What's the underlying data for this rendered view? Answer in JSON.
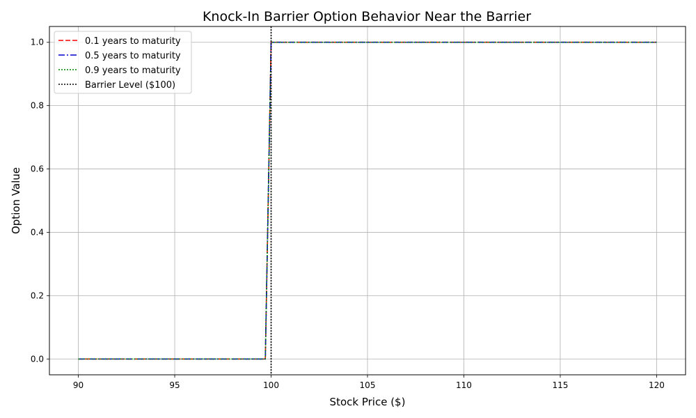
{
  "chart_data": {
    "type": "line",
    "title": "Knock-In Barrier Option Behavior Near the Barrier",
    "xlabel": "Stock Price ($)",
    "ylabel": "Option Value",
    "xlim": [
      88.5,
      121.5
    ],
    "ylim": [
      -0.05,
      1.05
    ],
    "xticks": [
      90,
      95,
      100,
      105,
      110,
      115,
      120
    ],
    "xtick_labels": [
      "90",
      "95",
      "100",
      "105",
      "110",
      "115",
      "120"
    ],
    "yticks": [
      0.0,
      0.2,
      0.4,
      0.6,
      0.8,
      1.0
    ],
    "ytick_labels": [
      "0.0",
      "0.2",
      "0.4",
      "0.6",
      "0.8",
      "1.0"
    ],
    "grid": true,
    "legend_position": "top-left",
    "series": [
      {
        "name": "0.1 years to maturity",
        "color": "#ff0000",
        "style": "dashed",
        "x": [
          90,
          99.7,
          100.0,
          120
        ],
        "y": [
          0.0,
          0.0,
          1.0,
          1.0
        ]
      },
      {
        "name": "0.5 years to maturity",
        "color": "#0000cc",
        "style": "dashdot",
        "x": [
          90,
          99.7,
          100.0,
          120
        ],
        "y": [
          0.0,
          0.0,
          1.0,
          1.0
        ]
      },
      {
        "name": "0.9 years to maturity",
        "color": "#008000",
        "style": "dotted",
        "x": [
          90,
          99.7,
          100.0,
          120
        ],
        "y": [
          0.0,
          0.0,
          1.0,
          1.0
        ]
      }
    ],
    "barrier": {
      "name": "Barrier Level ($100)",
      "x": 100,
      "color": "#000000",
      "style": "dotted"
    }
  }
}
